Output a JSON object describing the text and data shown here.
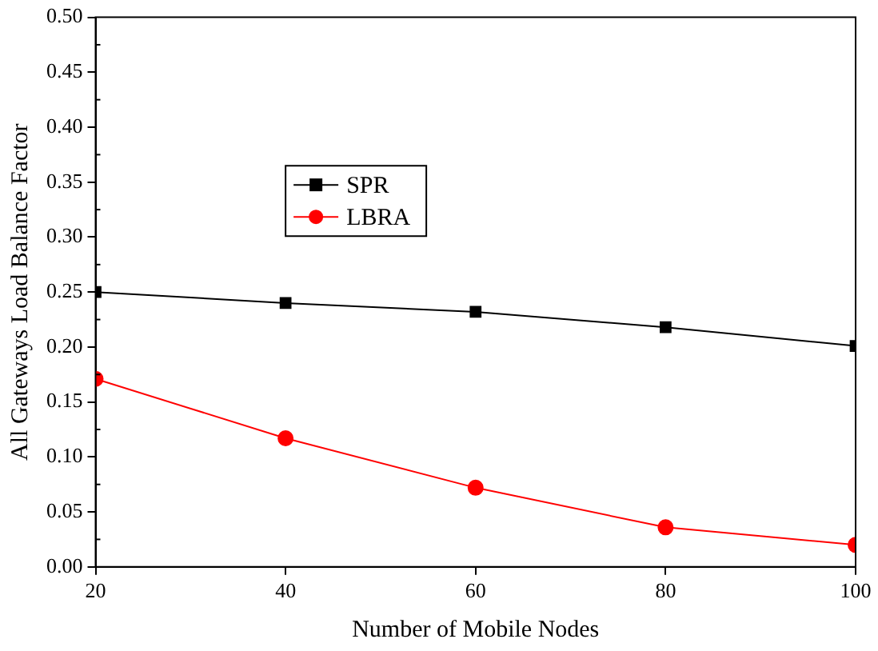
{
  "chart_data": {
    "type": "line",
    "xlabel": "Number of Mobile Nodes",
    "ylabel": "All Gateways Load Balance Factor",
    "x": [
      20,
      40,
      60,
      80,
      100
    ],
    "series": [
      {
        "name": "SPR",
        "color": "#000000",
        "marker": "square",
        "values": [
          0.25,
          0.24,
          0.232,
          0.218,
          0.201
        ]
      },
      {
        "name": "LBRA",
        "color": "#ff0000",
        "marker": "circle",
        "values": [
          0.171,
          0.117,
          0.072,
          0.036,
          0.02
        ]
      }
    ],
    "xlim": [
      20,
      100
    ],
    "xticks": [
      20,
      40,
      60,
      80,
      100
    ],
    "ylim": [
      0,
      0.5
    ],
    "yticks": [
      {
        "value": 0,
        "label": "0.00"
      },
      {
        "value": 0.05,
        "label": "0.05"
      },
      {
        "value": 0.1,
        "label": "0.10"
      },
      {
        "value": 0.15,
        "label": "0.15"
      },
      {
        "value": 0.2,
        "label": "0.20"
      },
      {
        "value": 0.25,
        "label": "0.25"
      },
      {
        "value": 0.3,
        "label": "0.30"
      },
      {
        "value": 0.35,
        "label": "0.35"
      },
      {
        "value": 0.4,
        "label": "0.40"
      },
      {
        "value": 0.45,
        "label": "0.45"
      },
      {
        "value": 0.5,
        "label": "0.50"
      }
    ],
    "grid": false,
    "legend": "top left",
    "line_style": "solid"
  }
}
